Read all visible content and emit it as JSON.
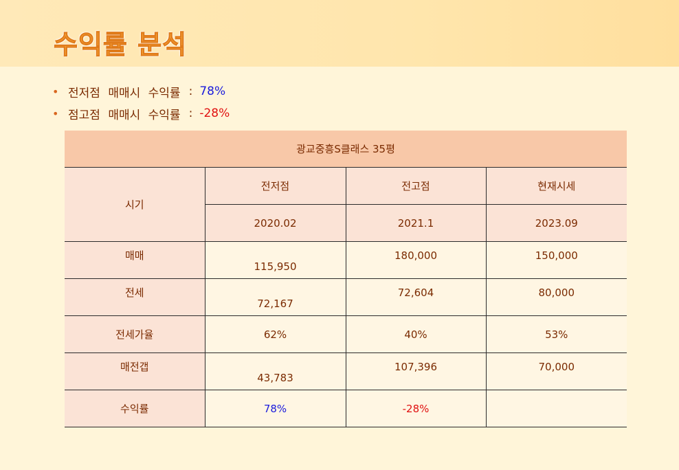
{
  "title": "수익률 분석",
  "bullets": [
    {
      "label": "전저점 매매시 수익률",
      "colon": ":",
      "value": "78%",
      "color": "#1a1adc"
    },
    {
      "label": "점고점 매매시 수익률",
      "colon": ":",
      "value": "-28%",
      "color": "#e01010"
    }
  ],
  "table": {
    "banner": "광교중흥S클래스 35평",
    "period_label": "시기",
    "columns": [
      {
        "name": "전저점",
        "date": "2020.02"
      },
      {
        "name": "전고점",
        "date": "2021.1"
      },
      {
        "name": "현재시세",
        "date": "2023.09"
      }
    ],
    "rows": [
      {
        "label": "매매",
        "values": [
          "115,950",
          "180,000",
          "150,000"
        ]
      },
      {
        "label": "전세",
        "values": [
          "72,167",
          "72,604",
          "80,000"
        ]
      },
      {
        "label": "전세가율",
        "values": [
          "62%",
          "40%",
          "53%"
        ]
      },
      {
        "label": "매전갭",
        "values": [
          "43,783",
          "107,396",
          "70,000"
        ]
      },
      {
        "label": "수익률",
        "values": [
          "78%",
          "-28%",
          ""
        ]
      }
    ]
  },
  "colors": {
    "positive": "#1a1adc",
    "negative": "#e01010",
    "text": "#7a2a00",
    "banner": "#f8c8a8",
    "header_cell": "#fbe3d6"
  }
}
